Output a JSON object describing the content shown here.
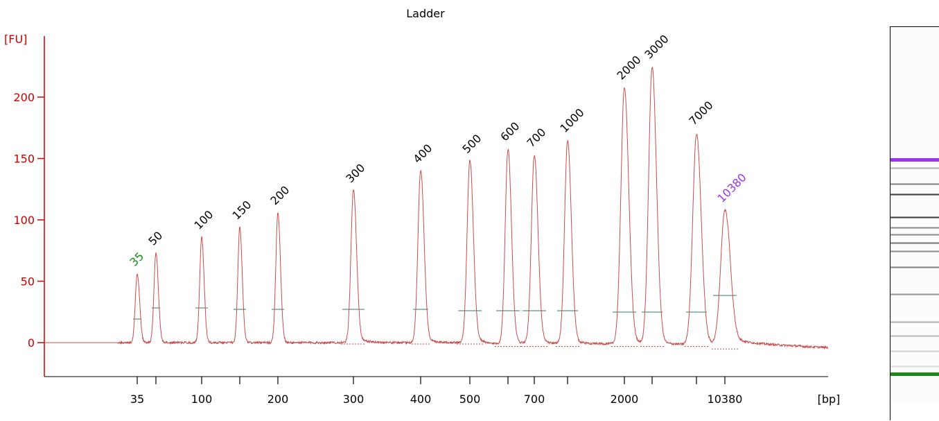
{
  "chart_data": {
    "type": "line",
    "title": "Ladder",
    "ylabel": "[FU]",
    "xlabel": "[bp]",
    "ylim": [
      -25,
      250
    ],
    "y_ticks": [
      0,
      50,
      100,
      150,
      200
    ],
    "x_tick_labels": [
      "35",
      "",
      "100",
      "",
      "200",
      "300",
      "400",
      "500",
      "",
      "700",
      "",
      "2000",
      "",
      "",
      "10380"
    ],
    "colors": {
      "axis": "#cc0000",
      "trace": "#c84b4b",
      "lower_marker": "#1a8a1a",
      "upper_marker": "#9933ee",
      "peak_label": "#000000",
      "baseline_tick": "#2e7d5e"
    },
    "series": [
      {
        "peaks": [
          {
            "label": "35",
            "height": 56,
            "marker": "lower"
          },
          {
            "label": "50",
            "height": 73
          },
          {
            "label": "100",
            "height": 86
          },
          {
            "label": "150",
            "height": 94
          },
          {
            "label": "200",
            "height": 106
          },
          {
            "label": "300",
            "height": 124
          },
          {
            "label": "400",
            "height": 140
          },
          {
            "label": "500",
            "height": 148
          },
          {
            "label": "600",
            "height": 158
          },
          {
            "label": "700",
            "height": 153
          },
          {
            "label": "1000",
            "height": 165
          },
          {
            "label": "2000",
            "height": 208
          },
          {
            "label": "3000",
            "height": 225
          },
          {
            "label": "7000",
            "height": 171
          },
          {
            "label": "10380",
            "height": 108,
            "marker": "upper"
          }
        ]
      }
    ]
  },
  "gel": {
    "bands": [
      {
        "level": 0.65,
        "marker": "upper"
      },
      {
        "level": 0.35
      },
      {
        "level": 0.55
      },
      {
        "level": 0.85
      },
      {
        "level": 0.85
      },
      {
        "level": 0.5
      },
      {
        "level": 0.5
      },
      {
        "level": 0.6
      },
      {
        "level": 0.5
      },
      {
        "level": 0.55
      },
      {
        "level": 0.45
      },
      {
        "level": 0.35
      },
      {
        "level": 0.3
      },
      {
        "level": 0.2
      },
      {
        "level": 0.15
      },
      {
        "level": 0.65,
        "marker": "lower"
      }
    ]
  }
}
